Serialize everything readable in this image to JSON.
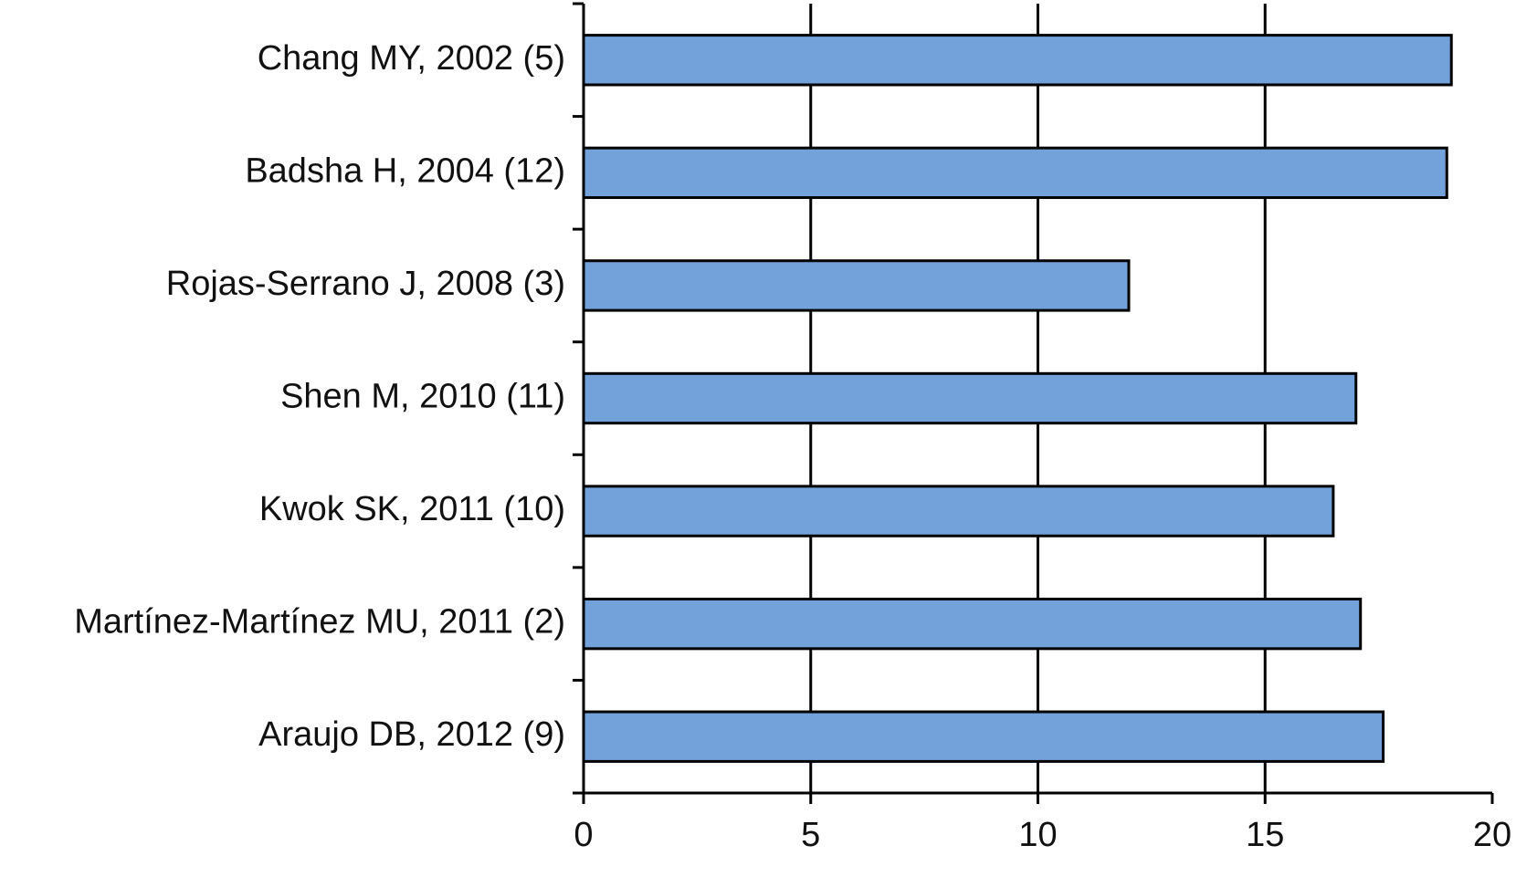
{
  "chart_data": {
    "type": "bar",
    "orientation": "horizontal",
    "categories": [
      "Chang MY, 2002 (5)",
      "Badsha H, 2004 (12)",
      "Rojas-Serrano J, 2008 (3)",
      "Shen M, 2010 (11)",
      "Kwok SK, 2011 (10)",
      "Martínez-Martínez MU, 2011 (2)",
      "Araujo DB, 2012 (9)"
    ],
    "values": [
      19.1,
      19.0,
      12.0,
      17.0,
      16.5,
      17.1,
      17.6
    ],
    "color": "#73a2db",
    "xlim": [
      0,
      20
    ],
    "xticks": [
      0,
      5,
      10,
      15,
      20
    ],
    "grid": true
  }
}
